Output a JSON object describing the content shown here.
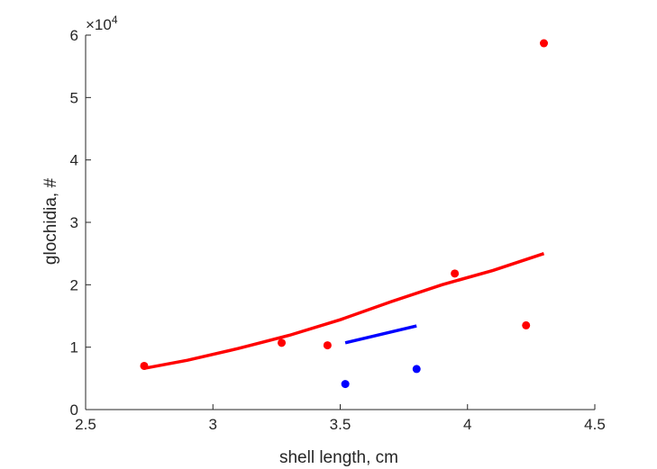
{
  "chart_data": {
    "type": "scatter",
    "xlabel": "shell length, cm",
    "ylabel": "glochidia, #",
    "xlim": [
      2.5,
      4.5
    ],
    "ylim": [
      0,
      60000
    ],
    "x_ticks": [
      "2.5",
      "3",
      "3.5",
      "4",
      "4.5"
    ],
    "y_ticks": [
      "0",
      "1",
      "2",
      "3",
      "4",
      "5",
      "6"
    ],
    "y_multiplier_text": "×10",
    "y_multiplier_exp": "4",
    "grid": false,
    "series": [
      {
        "kind": "points",
        "color": "#ff0000",
        "points": [
          [
            2.73,
            7000
          ],
          [
            3.27,
            10700
          ],
          [
            3.45,
            10300
          ],
          [
            3.95,
            21800
          ],
          [
            4.23,
            13500
          ],
          [
            4.3,
            58700
          ]
        ]
      },
      {
        "kind": "points",
        "color": "#0000ff",
        "points": [
          [
            3.52,
            4100
          ],
          [
            3.8,
            6500
          ]
        ]
      },
      {
        "kind": "line",
        "color": "#ff0000",
        "points": [
          [
            2.73,
            6600
          ],
          [
            2.9,
            7900
          ],
          [
            3.1,
            9800
          ],
          [
            3.3,
            11900
          ],
          [
            3.5,
            14400
          ],
          [
            3.7,
            17300
          ],
          [
            3.9,
            20000
          ],
          [
            4.1,
            22300
          ],
          [
            4.3,
            25000
          ]
        ]
      },
      {
        "kind": "line",
        "color": "#0000ff",
        "points": [
          [
            3.52,
            10700
          ],
          [
            3.8,
            13400
          ]
        ]
      }
    ]
  }
}
